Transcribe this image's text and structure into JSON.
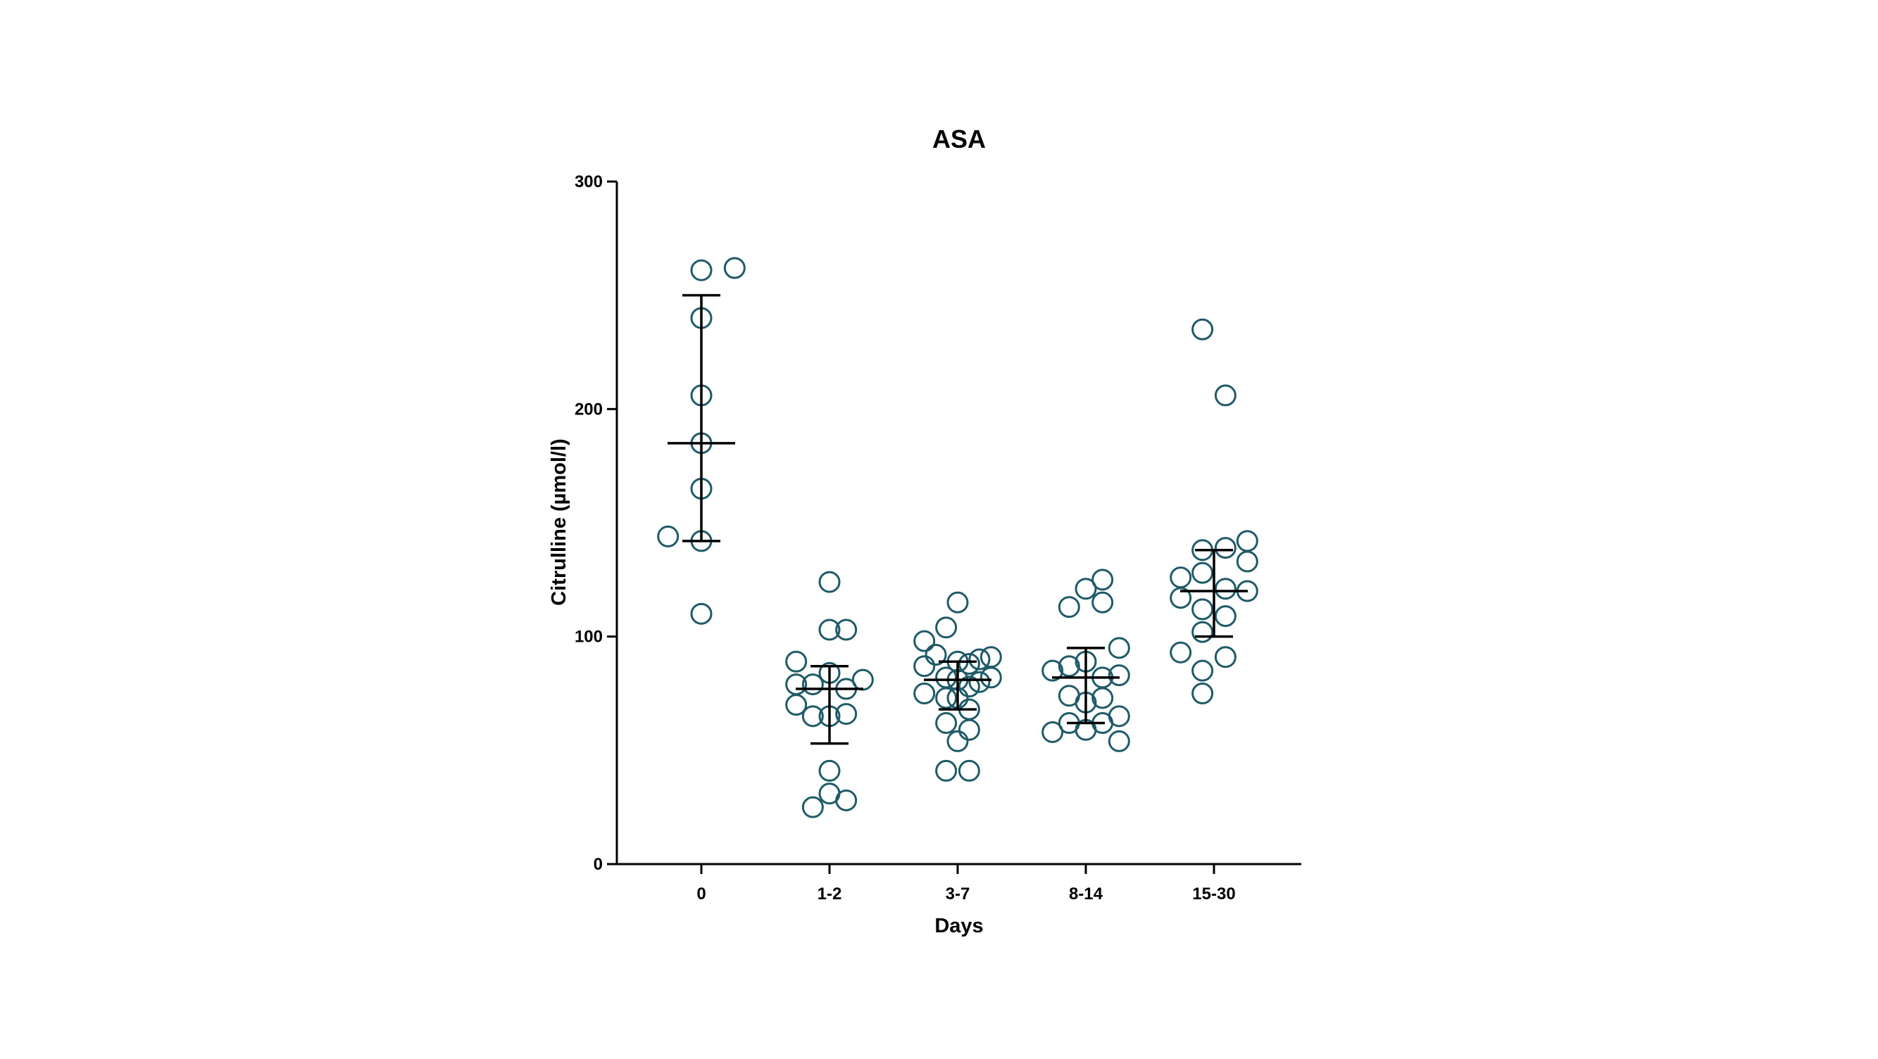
{
  "chart_data": {
    "type": "scatter",
    "title": "ASA",
    "xlabel": "Days",
    "ylabel": "Citrulline (µmol/l)",
    "ylim": [
      0,
      300
    ],
    "yticks": [
      0,
      100,
      200,
      300
    ],
    "categories": [
      "0",
      "1-2",
      "3-7",
      "8-14",
      "15-30"
    ],
    "marker_color": "#1f5a68",
    "errorbar_color": "#000000",
    "groups": [
      {
        "category": "0",
        "mean": 185,
        "upper": 250,
        "lower": 142,
        "points": [
          {
            "offset": 0.0,
            "value": 261
          },
          {
            "offset": 0.26,
            "value": 262
          },
          {
            "offset": 0.0,
            "value": 240
          },
          {
            "offset": 0.0,
            "value": 206
          },
          {
            "offset": 0.0,
            "value": 185
          },
          {
            "offset": 0.0,
            "value": 165
          },
          {
            "offset": -0.26,
            "value": 144
          },
          {
            "offset": 0.0,
            "value": 142
          },
          {
            "offset": 0.0,
            "value": 110
          }
        ]
      },
      {
        "category": "1-2",
        "mean": 77,
        "upper": 87,
        "lower": 53,
        "points": [
          {
            "offset": 0.0,
            "value": 124
          },
          {
            "offset": 0.0,
            "value": 103
          },
          {
            "offset": 0.13,
            "value": 103
          },
          {
            "offset": -0.26,
            "value": 89
          },
          {
            "offset": 0.0,
            "value": 84
          },
          {
            "offset": 0.26,
            "value": 81
          },
          {
            "offset": -0.26,
            "value": 79
          },
          {
            "offset": -0.13,
            "value": 79
          },
          {
            "offset": 0.13,
            "value": 77
          },
          {
            "offset": -0.26,
            "value": 70
          },
          {
            "offset": -0.13,
            "value": 65
          },
          {
            "offset": 0.0,
            "value": 65
          },
          {
            "offset": 0.13,
            "value": 66
          },
          {
            "offset": 0.0,
            "value": 41
          },
          {
            "offset": 0.0,
            "value": 31
          },
          {
            "offset": -0.13,
            "value": 25
          },
          {
            "offset": 0.13,
            "value": 28
          }
        ]
      },
      {
        "category": "3-7",
        "mean": 81,
        "upper": 89,
        "lower": 68,
        "points": [
          {
            "offset": 0.0,
            "value": 115
          },
          {
            "offset": -0.09,
            "value": 104
          },
          {
            "offset": -0.26,
            "value": 98
          },
          {
            "offset": -0.17,
            "value": 92
          },
          {
            "offset": 0.0,
            "value": 89
          },
          {
            "offset": 0.09,
            "value": 88
          },
          {
            "offset": 0.17,
            "value": 90
          },
          {
            "offset": 0.26,
            "value": 91
          },
          {
            "offset": -0.26,
            "value": 87
          },
          {
            "offset": -0.09,
            "value": 82
          },
          {
            "offset": 0.0,
            "value": 81
          },
          {
            "offset": 0.26,
            "value": 82
          },
          {
            "offset": 0.09,
            "value": 78
          },
          {
            "offset": 0.17,
            "value": 80
          },
          {
            "offset": -0.26,
            "value": 75
          },
          {
            "offset": -0.09,
            "value": 73
          },
          {
            "offset": 0.0,
            "value": 73
          },
          {
            "offset": 0.09,
            "value": 68
          },
          {
            "offset": -0.09,
            "value": 62
          },
          {
            "offset": 0.09,
            "value": 59
          },
          {
            "offset": 0.0,
            "value": 54
          },
          {
            "offset": -0.09,
            "value": 41
          },
          {
            "offset": 0.09,
            "value": 41
          }
        ]
      },
      {
        "category": "8-14",
        "mean": 82,
        "upper": 95,
        "lower": 62,
        "points": [
          {
            "offset": 0.13,
            "value": 125
          },
          {
            "offset": 0.0,
            "value": 121
          },
          {
            "offset": -0.13,
            "value": 113
          },
          {
            "offset": 0.13,
            "value": 115
          },
          {
            "offset": 0.26,
            "value": 95
          },
          {
            "offset": 0.0,
            "value": 89
          },
          {
            "offset": -0.13,
            "value": 87
          },
          {
            "offset": -0.26,
            "value": 85
          },
          {
            "offset": 0.13,
            "value": 82
          },
          {
            "offset": 0.26,
            "value": 83
          },
          {
            "offset": -0.13,
            "value": 74
          },
          {
            "offset": 0.13,
            "value": 73
          },
          {
            "offset": 0.0,
            "value": 71
          },
          {
            "offset": 0.26,
            "value": 65
          },
          {
            "offset": -0.13,
            "value": 62
          },
          {
            "offset": 0.13,
            "value": 62
          },
          {
            "offset": 0.0,
            "value": 59
          },
          {
            "offset": -0.26,
            "value": 58
          },
          {
            "offset": 0.26,
            "value": 54
          }
        ]
      },
      {
        "category": "15-30",
        "mean": 120,
        "upper": 138,
        "lower": 100,
        "points": [
          {
            "offset": -0.09,
            "value": 235
          },
          {
            "offset": 0.09,
            "value": 206
          },
          {
            "offset": 0.26,
            "value": 142
          },
          {
            "offset": -0.09,
            "value": 138
          },
          {
            "offset": 0.09,
            "value": 139
          },
          {
            "offset": 0.26,
            "value": 133
          },
          {
            "offset": -0.09,
            "value": 128
          },
          {
            "offset": -0.26,
            "value": 126
          },
          {
            "offset": 0.09,
            "value": 121
          },
          {
            "offset": 0.26,
            "value": 120
          },
          {
            "offset": -0.26,
            "value": 117
          },
          {
            "offset": -0.09,
            "value": 112
          },
          {
            "offset": 0.09,
            "value": 109
          },
          {
            "offset": -0.09,
            "value": 102
          },
          {
            "offset": -0.26,
            "value": 93
          },
          {
            "offset": 0.09,
            "value": 91
          },
          {
            "offset": -0.09,
            "value": 85
          },
          {
            "offset": -0.09,
            "value": 75
          }
        ]
      }
    ]
  }
}
